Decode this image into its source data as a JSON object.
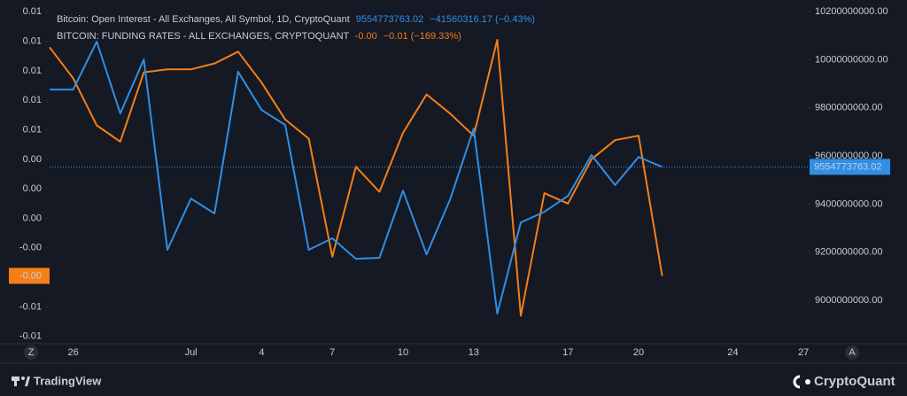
{
  "chart_data": {
    "type": "line",
    "categories": [
      null,
      "26",
      null,
      null,
      null,
      null,
      "Jul",
      null,
      null,
      "4",
      null,
      null,
      "7",
      null,
      null,
      "10",
      null,
      null,
      "13",
      null,
      null,
      null,
      "17",
      null,
      null,
      "20",
      null,
      null,
      null,
      "24",
      null,
      null,
      "27"
    ],
    "series": [
      {
        "name": "Bitcoin: Open Interest - All Exchanges, All Symbol, 1D, CryptoQuant",
        "color": "#2f8fe6",
        "axis": "y2",
        "last_label": "9554773763.02",
        "change_label": "−41560316.17 (−0.43%)",
        "values": [
          9876000000,
          9876000000,
          10075000000,
          9777000000,
          10001000000,
          9210000000,
          9423000000,
          9361000000,
          9950000000,
          9791000000,
          9729000000,
          9210000000,
          9258000000,
          9173000000,
          9177000000,
          9456000000,
          9191000000,
          9420000000,
          9714000000,
          8945000000,
          9324000000,
          9368000000,
          9434000000,
          9604000000,
          9479000000,
          9596000000,
          9554773763.02,
          null,
          null,
          null,
          null,
          null,
          null
        ]
      },
      {
        "name": "BITCOIN: FUNDING RATES - ALL EXCHANGES, CRYPTOQUANT",
        "color": "#f57f17",
        "last_label": "-0.00",
        "change_label": "−0.01 (−169.33%)",
        "values": [
          0.0116,
          0.0095,
          0.0063,
          0.0052,
          0.0099,
          0.0101,
          0.0101,
          0.0105,
          0.0113,
          0.0092,
          0.0067,
          0.0054,
          -0.0026,
          0.0035,
          0.0018,
          0.0058,
          0.0084,
          0.0071,
          0.0056,
          0.0121,
          -0.0066,
          0.0017,
          0.001,
          0.004,
          0.0053,
          0.0056,
          -0.0039,
          null,
          null,
          null,
          null,
          null,
          null
        ]
      }
    ],
    "ylim": [
      -0.0085,
      0.0148
    ],
    "yticks": [
      {
        "value": 0.014,
        "label": "0.01"
      },
      {
        "value": 0.012,
        "label": "0.01"
      },
      {
        "value": 0.01,
        "label": "0.01"
      },
      {
        "value": 0.008,
        "label": "0.01"
      },
      {
        "value": 0.006,
        "label": "0.01"
      },
      {
        "value": 0.004,
        "label": "0.00"
      },
      {
        "value": 0.002,
        "label": "0.00"
      },
      {
        "value": 0,
        "label": "0.00"
      },
      {
        "value": -0.002,
        "label": "-0.00"
      },
      {
        "value": -0.006,
        "label": "-0.01"
      },
      {
        "value": -0.008,
        "label": "-0.01"
      }
    ],
    "y2lim": [
      8820000000,
      10248000000
    ],
    "y2ticks": [
      {
        "value": 10200000000,
        "label": "10200000000.00"
      },
      {
        "value": 10000000000,
        "label": "10000000000.00"
      },
      {
        "value": 9800000000,
        "label": "9800000000.00"
      },
      {
        "value": 9600000000,
        "label": "9600000000.00"
      },
      {
        "value": 9400000000,
        "label": "9400000000.00"
      },
      {
        "value": 9200000000,
        "label": "9200000000.00"
      },
      {
        "value": 9000000000,
        "label": "9000000000.00"
      }
    ],
    "grid": false,
    "scale_buttons": [
      "Z",
      "A"
    ],
    "brand": "TradingView",
    "source": "CryptoQuant"
  }
}
